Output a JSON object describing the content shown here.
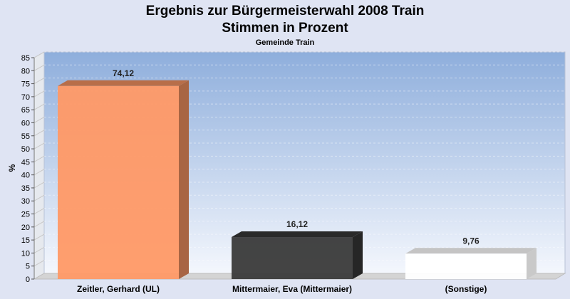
{
  "chart_data": {
    "type": "bar",
    "title": "Ergebnis zur Bürgermeisterwahl 2008 Train",
    "subtitle": "Stimmen in Prozent",
    "caption": "Gemeinde Train",
    "ylabel": "%",
    "xlabel": "",
    "ylim": [
      0,
      85
    ],
    "yticks": [
      0,
      5,
      10,
      15,
      20,
      25,
      30,
      35,
      40,
      45,
      50,
      55,
      60,
      65,
      70,
      75,
      80,
      85
    ],
    "grid": true,
    "categories": [
      "Zeitler, Gerhard (UL)",
      "Mittermaier, Eva (Mittermaier)",
      "(Sonstige)"
    ],
    "values": [
      74.12,
      16.12,
      9.76
    ],
    "value_labels": [
      "74,12",
      "16,12",
      "9,76"
    ],
    "colors": [
      "#ff9966",
      "#3a3a3a",
      "#ffffff"
    ]
  }
}
